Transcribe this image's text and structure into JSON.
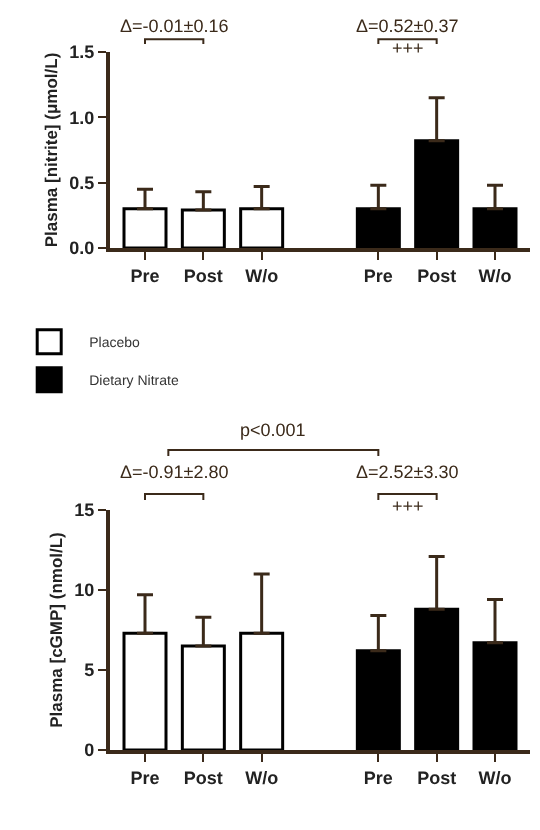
{
  "chart_data": [
    {
      "type": "bar",
      "ylabel": "Plasma [nitrite] (μmol/L)",
      "categories": [
        "Pre",
        "Post",
        "W/o",
        null,
        "Pre",
        "Post",
        "W/o"
      ],
      "series": [
        {
          "name": "Placebo",
          "color": "#ffffff",
          "values": [
            0.3,
            0.29,
            0.3,
            null,
            null,
            null,
            null
          ],
          "errors": [
            [
              0.3,
              0.45
            ],
            [
              0.29,
              0.43
            ],
            [
              0.3,
              0.47
            ],
            null,
            null,
            null,
            null
          ]
        },
        {
          "name": "Dietary Nitrate",
          "color": "#000000",
          "values": [
            null,
            null,
            null,
            null,
            0.3,
            0.82,
            0.3
          ],
          "errors": [
            null,
            null,
            null,
            null,
            [
              0.3,
              0.48
            ],
            [
              0.82,
              1.15
            ],
            [
              0.3,
              0.48
            ]
          ]
        }
      ],
      "ylim": [
        0,
        1.5
      ],
      "yticks": [
        {
          "value": 0,
          "label": "0.0"
        },
        {
          "value": 0.5,
          "label": "0.5"
        },
        {
          "value": 1,
          "label": "1.0"
        },
        {
          "value": 1.5,
          "label": "1.5"
        }
      ],
      "annotations": [
        "Δ=-0.01±0.16",
        "Δ=0.52±0.37",
        "+++"
      ],
      "legend": "bottom left",
      "grid": false
    },
    {
      "type": "bar",
      "ylabel": "Plasma [cGMP] (nmol/L)",
      "categories": [
        "Pre",
        "Post",
        "W/o",
        null,
        "Pre",
        "Post",
        "W/o"
      ],
      "series": [
        {
          "color": "#ffffff",
          "values": [
            7.3,
            6.5,
            7.3,
            null,
            null,
            null,
            null
          ],
          "errors": [
            [
              7.3,
              9.7
            ],
            [
              6.5,
              8.3
            ],
            [
              7.3,
              11.0
            ],
            null,
            null,
            null,
            null
          ]
        },
        {
          "color": "#000000",
          "values": [
            null,
            null,
            null,
            null,
            6.2,
            8.8,
            6.7
          ],
          "errors": [
            null,
            null,
            null,
            null,
            [
              6.2,
              8.4
            ],
            [
              8.8,
              12.1
            ],
            [
              6.7,
              9.4
            ]
          ]
        }
      ],
      "ylim": [
        0,
        15
      ],
      "yticks": [
        0,
        5,
        10,
        15
      ],
      "annotations": [
        "p<0.001",
        "Δ=-0.91±2.80",
        "Δ=2.52±3.30",
        "+++"
      ],
      "legend": false,
      "grid": false
    }
  ]
}
